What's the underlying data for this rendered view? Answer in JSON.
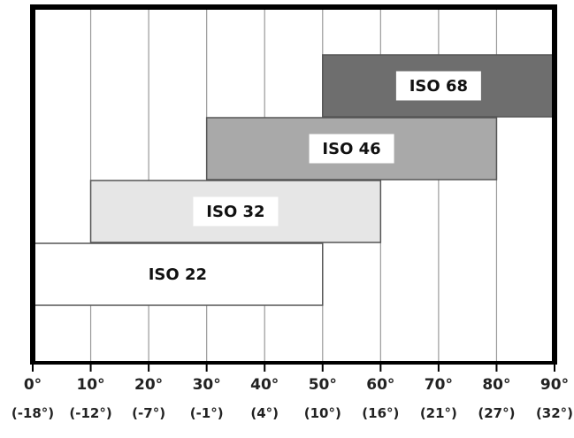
{
  "chart_data": {
    "type": "bar",
    "orientation": "horizontal-range",
    "title": "",
    "xlabel": "",
    "ylabel": "",
    "xlim": [
      0,
      90
    ],
    "grid": true,
    "legend": "none",
    "x_ticks": [
      {
        "value": 0,
        "label": "0°",
        "sub": "(-18°)"
      },
      {
        "value": 10,
        "label": "10°",
        "sub": "(-12°)"
      },
      {
        "value": 20,
        "label": "20°",
        "sub": "(-7°)"
      },
      {
        "value": 30,
        "label": "30°",
        "sub": "(-1°)"
      },
      {
        "value": 40,
        "label": "40°",
        "sub": "(4°)"
      },
      {
        "value": 50,
        "label": "50°",
        "sub": "(10°)"
      },
      {
        "value": 60,
        "label": "60°",
        "sub": "(16°)"
      },
      {
        "value": 70,
        "label": "70°",
        "sub": "(21°)"
      },
      {
        "value": 80,
        "label": "80°",
        "sub": "(27°)"
      },
      {
        "value": 90,
        "label": "90°",
        "sub": "(32°)"
      }
    ],
    "series": [
      {
        "name": "ISO 68",
        "start": 50,
        "end": 90,
        "color": "#6e6e6e"
      },
      {
        "name": "ISO 46",
        "start": 30,
        "end": 80,
        "color": "#a9a9a9"
      },
      {
        "name": "ISO 32",
        "start": 10,
        "end": 60,
        "color": "#e6e6e6"
      },
      {
        "name": "ISO 22",
        "start": 0,
        "end": 50,
        "color": "#ffffff"
      }
    ]
  }
}
